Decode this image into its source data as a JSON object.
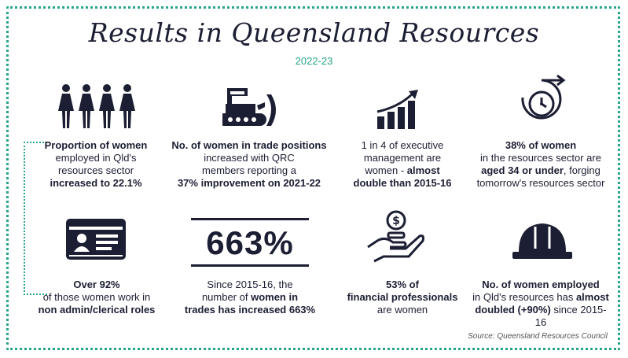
{
  "title": "Results in Queensland Resources",
  "year": "2022-23",
  "stats": {
    "s1": {
      "a": "Proportion of women",
      "b": "employed in Qld's",
      "c": "resources sector",
      "d": "increased to 22.1%"
    },
    "s2": {
      "a": "No. of women in trade positions",
      "b": "increased with QRC",
      "c": "members reporting a",
      "d": "37% improvement on 2021-22"
    },
    "s3": {
      "a": "1 in 4 of executive",
      "b": "management are",
      "c": "women - ",
      "c_bold": "almost",
      "d": "double than 2015-16"
    },
    "s4": {
      "a": "38% of women",
      "b": "in the resources sector are",
      "c_bold": "aged 34 or under",
      "c": ", forging",
      "d": "tomorrow's resources sector"
    },
    "s5": {
      "a": "Over 92%",
      "b": "of those women work in",
      "c": "non admin/clerical roles"
    },
    "s6": {
      "big": "663%",
      "a": "Since 2015-16, the",
      "b": "number of ",
      "b_bold": "women in",
      "c": "trades has increased 663%"
    },
    "s7": {
      "a": "53% of",
      "b": "financial professionals",
      "c": "are women"
    },
    "s8": {
      "a": "No. of women employed",
      "b": "in Qld's resources has ",
      "b_bold": "almost",
      "c": "doubled (+90%)",
      "c_tail": " since 2015-16"
    }
  },
  "icon_words": {
    "dollar": "$"
  },
  "source": "Source: Queensland Resources Council",
  "colors": {
    "navy": "#1c1e33",
    "teal": "#27a48b"
  }
}
